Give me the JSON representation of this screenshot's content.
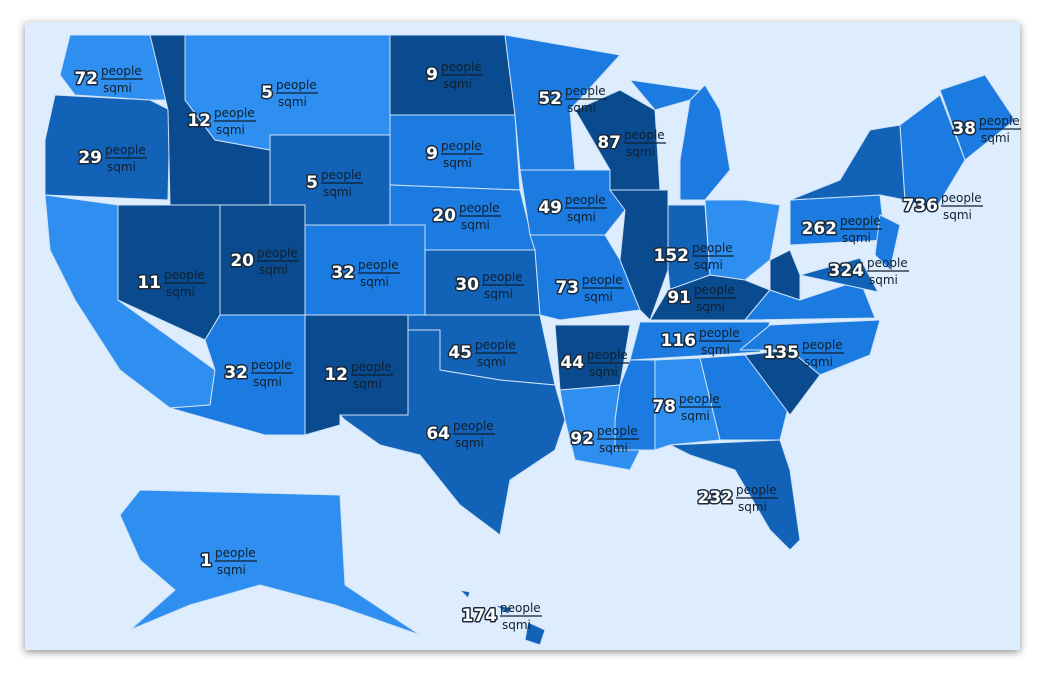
{
  "map": {
    "unit": {
      "numerator": "people",
      "denominator": "sqmi"
    },
    "values": [
      72,
      29,
      12,
      5,
      5,
      11,
      20,
      32,
      32,
      12,
      9,
      9,
      20,
      30,
      45,
      64,
      52,
      49,
      73,
      44,
      92,
      87,
      152,
      91,
      116,
      78,
      135,
      232,
      262,
      324,
      736,
      38,
      1,
      174
    ]
  }
}
